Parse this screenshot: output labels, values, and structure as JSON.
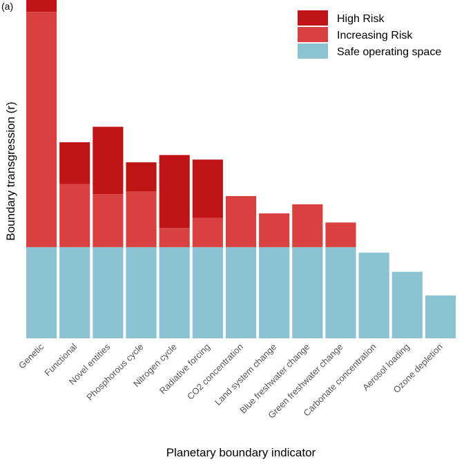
{
  "chart_data": {
    "type": "bar",
    "stacked": true,
    "panel_label": "(a)",
    "xlabel": "Planetary boundary indicator",
    "ylabel": "Boundary transgression (r)",
    "categories": [
      "Genetic",
      "Functional",
      "Novel entities",
      "Phosphorous cycle",
      "Nitrogen cycle",
      "Radiative forcing",
      "CO2 concentration",
      "Land system change",
      "Blue freshwater change",
      "Green freshwater change",
      "Carbonate concentration",
      "Aerosol loading",
      "Ozone depletion"
    ],
    "series": [
      {
        "name": "Safe operating space",
        "color": "#8bc3d1",
        "values": [
          1.0,
          1.0,
          1.0,
          1.0,
          1.0,
          1.0,
          1.0,
          1.0,
          1.0,
          1.0,
          0.94,
          0.73,
          0.47
        ]
      },
      {
        "name": "Increasing Risk",
        "color": "#d94141",
        "values": [
          2.58,
          0.69,
          0.58,
          0.61,
          0.21,
          0.32,
          0.56,
          0.37,
          0.47,
          0.27,
          0,
          0,
          0
        ]
      },
      {
        "name": "High Risk",
        "color": "#c01315",
        "values": [
          0.13,
          0.46,
          0.74,
          0.32,
          0.8,
          0.64,
          0,
          0,
          0,
          0,
          0,
          0,
          0
        ]
      }
    ],
    "legend_order": [
      "High Risk",
      "Increasing Risk",
      "Safe operating space"
    ],
    "legend_position": "top-right",
    "ylim": [
      0,
      3.71
    ],
    "grid": false
  }
}
